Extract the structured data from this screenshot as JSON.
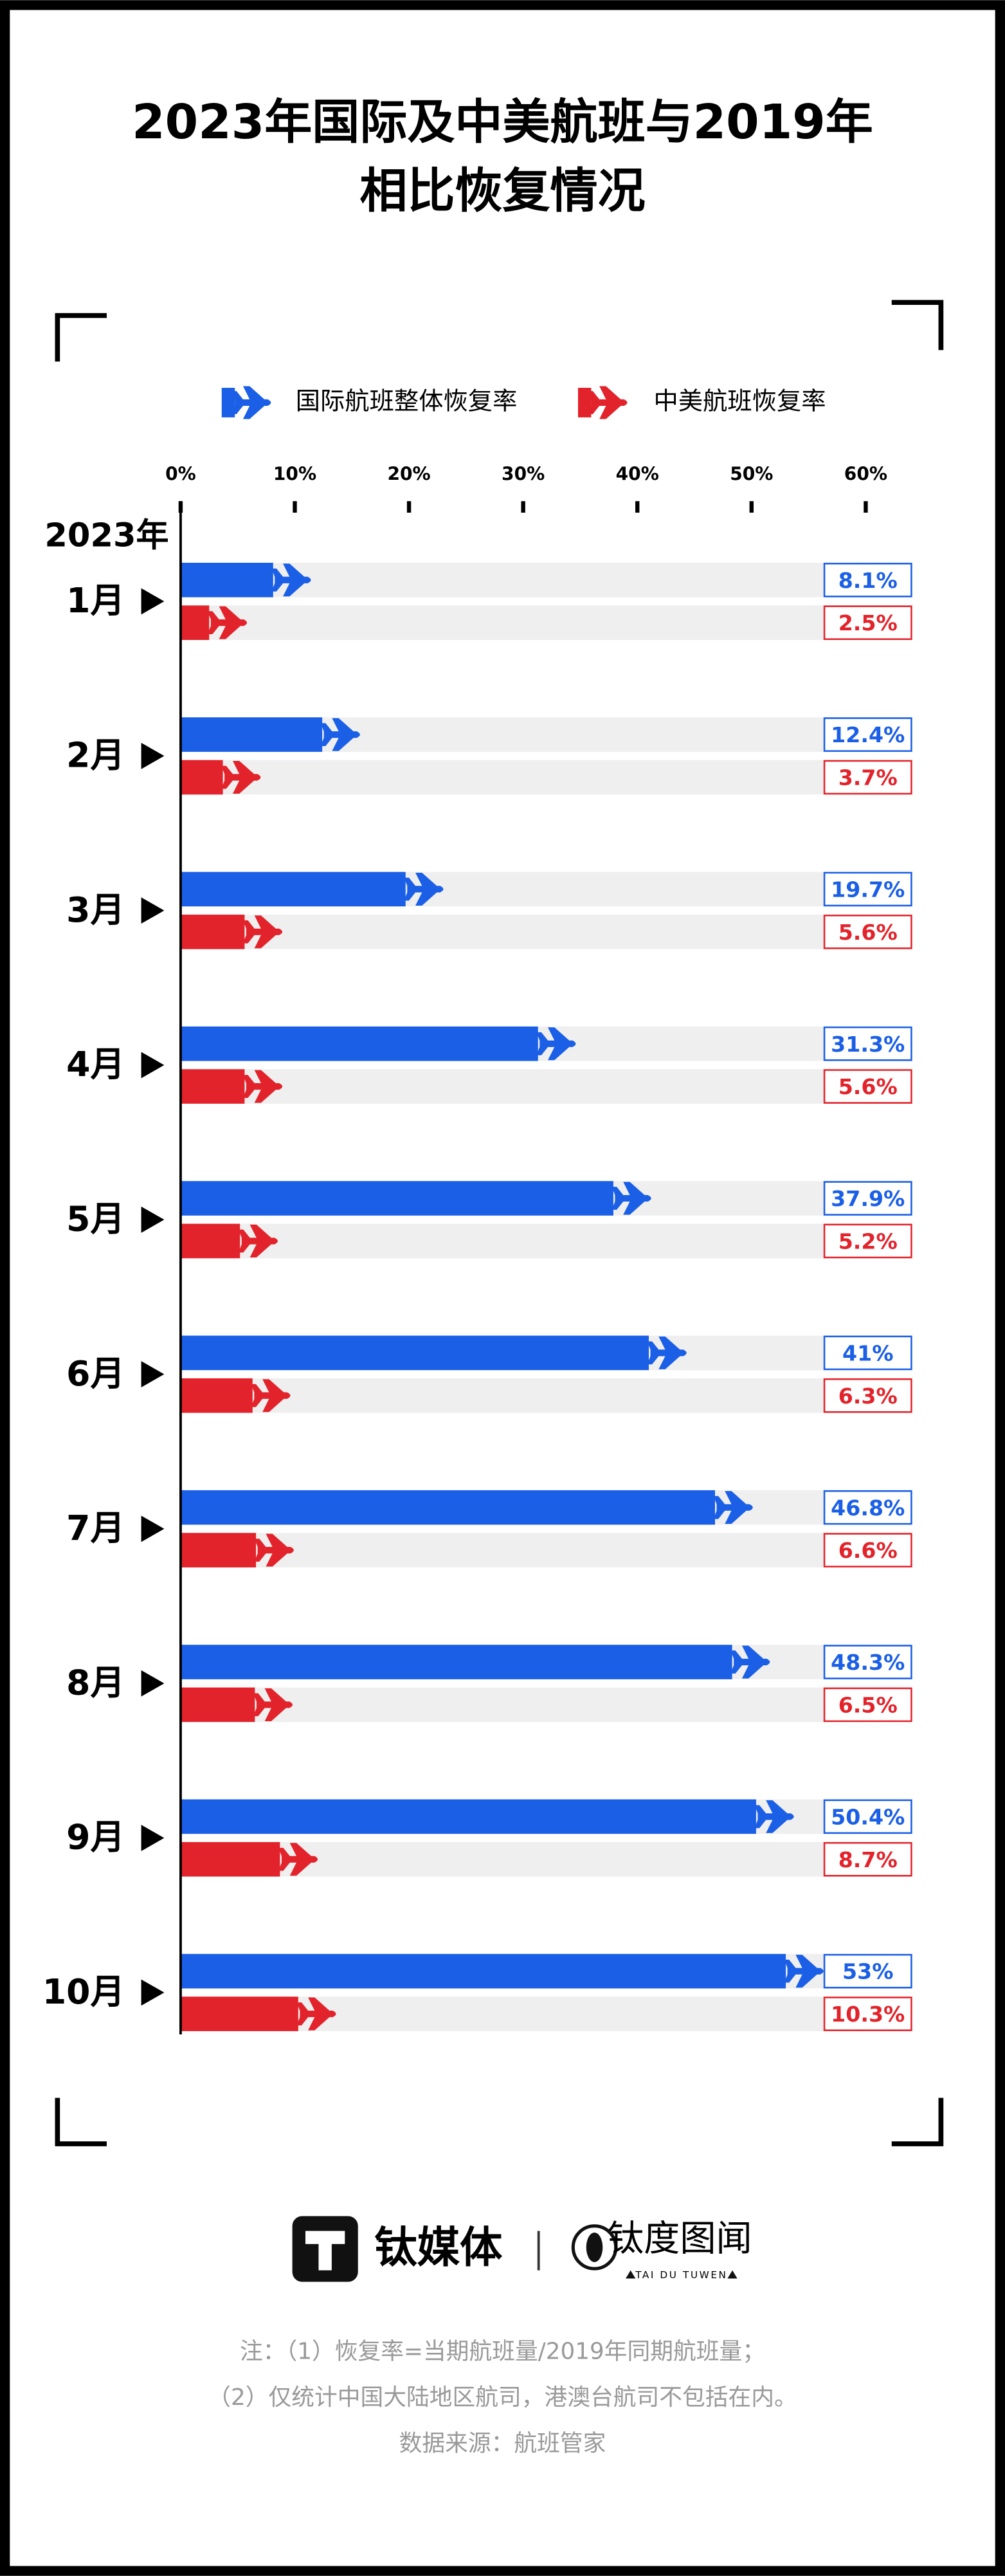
{
  "chart_data": {
    "type": "bar",
    "orientation": "horizontal",
    "title": [
      "2023年国际及中美航班与2019年",
      "相比恢复情况"
    ],
    "year_label": "2023年",
    "categories": [
      "1月",
      "2月",
      "3月",
      "4月",
      "5月",
      "6月",
      "7月",
      "8月",
      "9月",
      "10月"
    ],
    "series": [
      {
        "name": "国际航班整体恢复率",
        "color": "#1a5fe6",
        "values": [
          8.1,
          12.4,
          19.7,
          31.3,
          37.9,
          41,
          46.8,
          48.3,
          50.4,
          53
        ],
        "value_labels": [
          "8.1%",
          "12.4%",
          "19.7%",
          "31.3%",
          "37.9%",
          "41%",
          "46.8%",
          "48.3%",
          "50.4%",
          "53%"
        ]
      },
      {
        "name": "中美航班恢复率",
        "color": "#e3232b",
        "values": [
          2.5,
          3.7,
          5.6,
          5.6,
          5.2,
          6.3,
          6.6,
          6.5,
          8.7,
          10.3
        ],
        "value_labels": [
          "2.5%",
          "3.7%",
          "5.6%",
          "5.6%",
          "5.2%",
          "6.3%",
          "6.6%",
          "6.5%",
          "8.7%",
          "10.3%"
        ]
      }
    ],
    "xlim": [
      0,
      64
    ],
    "xticks": [
      {
        "value": 0,
        "label": "0%"
      },
      {
        "value": 10,
        "label": "10%"
      },
      {
        "value": 20,
        "label": "20%"
      },
      {
        "value": 30,
        "label": "30%"
      },
      {
        "value": 40,
        "label": "40%"
      },
      {
        "value": 50,
        "label": "50%"
      },
      {
        "value": 60,
        "label": "60%"
      }
    ],
    "legend": "top",
    "footer": {
      "brand": "钛媒体",
      "brand2": "钛度图闻",
      "brand2_en": "TAI DU TUWEN",
      "notes": [
        "注：（1）恢复率=当期航班量/2019年同期航班量；",
        "（2）仅统计中国大陆地区航司，港澳台航司不包括在内。",
        "数据来源：航班管家"
      ]
    }
  }
}
